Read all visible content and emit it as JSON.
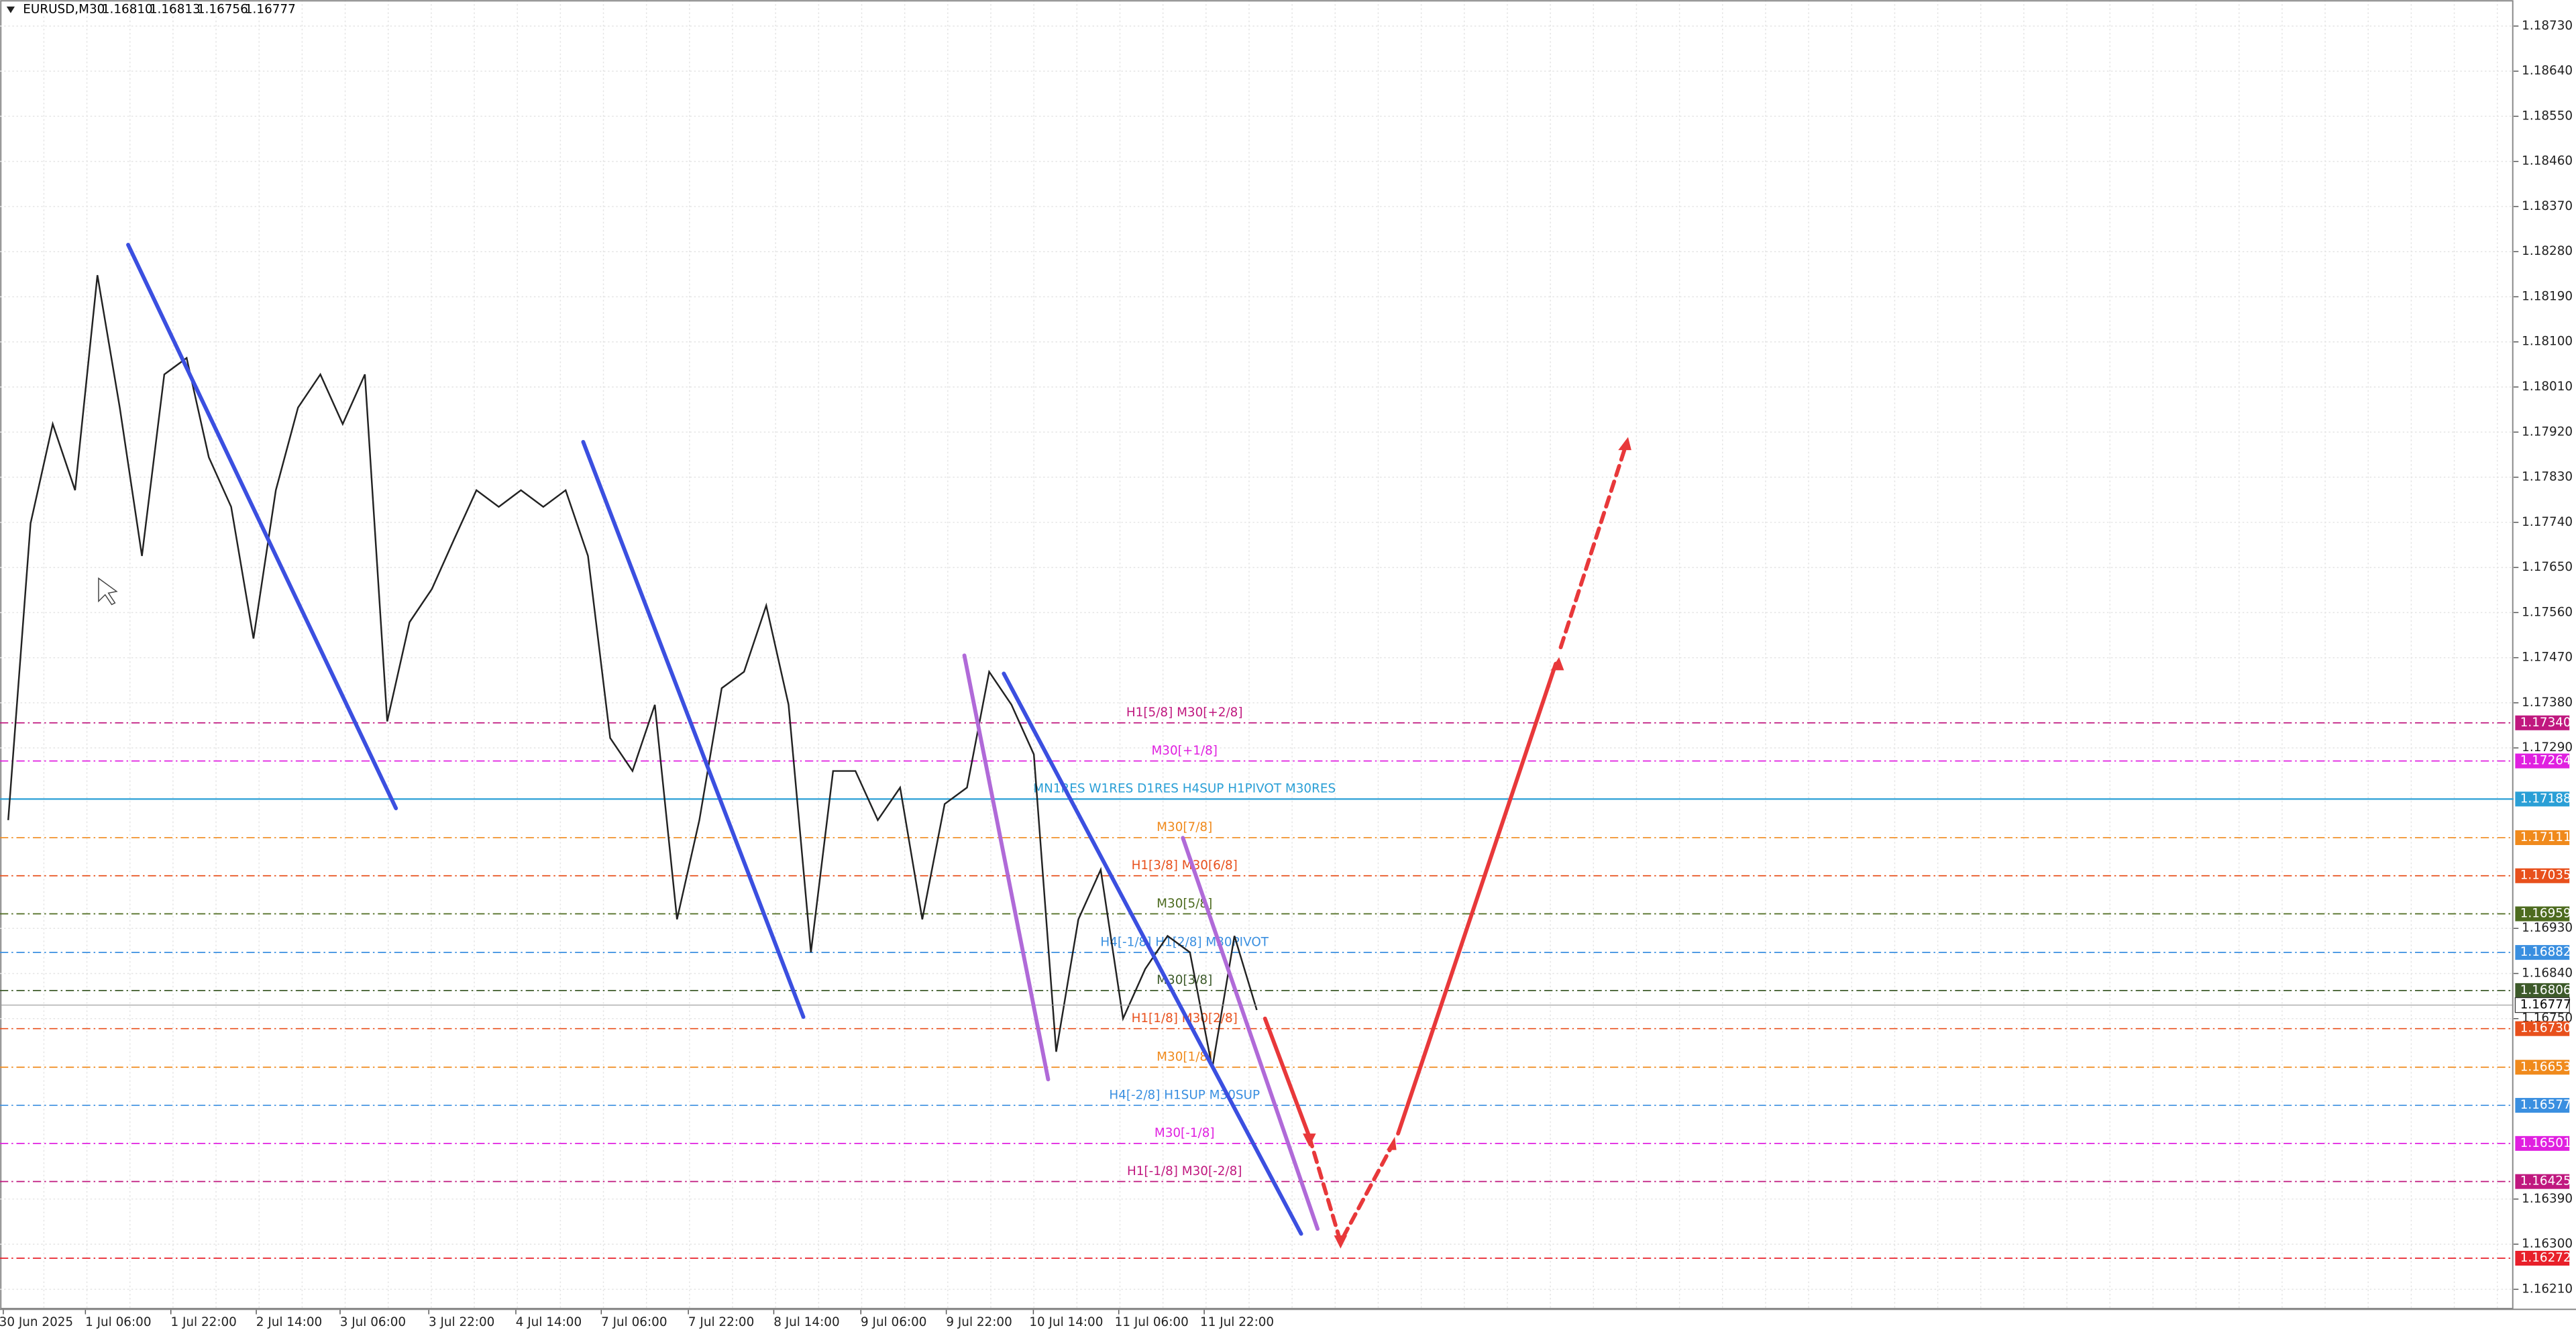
{
  "header": {
    "symbol": "EURUSD,M30",
    "quotes": [
      "1.16810",
      "1.16813",
      "1.16756",
      "1.16777"
    ]
  },
  "price_axis": {
    "ylim": [
      1.1617,
      1.18782
    ],
    "ticks": [
      {
        "value": 1.1873,
        "label": "1.18730"
      },
      {
        "value": 1.1864,
        "label": "1.18640"
      },
      {
        "value": 1.1855,
        "label": "1.18550"
      },
      {
        "value": 1.1846,
        "label": "1.18460"
      },
      {
        "value": 1.1837,
        "label": "1.18370"
      },
      {
        "value": 1.1828,
        "label": "1.18280"
      },
      {
        "value": 1.1819,
        "label": "1.18190"
      },
      {
        "value": 1.181,
        "label": "1.18100"
      },
      {
        "value": 1.1801,
        "label": "1.18010"
      },
      {
        "value": 1.1792,
        "label": "1.17920"
      },
      {
        "value": 1.1783,
        "label": "1.17830"
      },
      {
        "value": 1.1774,
        "label": "1.17740"
      },
      {
        "value": 1.1765,
        "label": "1.17650"
      },
      {
        "value": 1.1756,
        "label": "1.17560"
      },
      {
        "value": 1.1747,
        "label": "1.17470"
      },
      {
        "value": 1.1738,
        "label": "1.17380"
      },
      {
        "value": 1.1729,
        "label": "1.17290"
      },
      {
        "value": 1.1693,
        "label": "1.16930"
      },
      {
        "value": 1.1684,
        "label": "1.16840"
      },
      {
        "value": 1.1675,
        "label": "1.16750"
      },
      {
        "value": 1.1639,
        "label": "1.16390"
      },
      {
        "value": 1.163,
        "label": "1.16300"
      },
      {
        "value": 1.1621,
        "label": "1.16210"
      }
    ]
  },
  "time_axis": [
    "30 Jun 2025",
    "1 Jul 06:00",
    "1 Jul 22:00",
    "2 Jul 14:00",
    "3 Jul 06:00",
    "3 Jul 22:00",
    "4 Jul 14:00",
    "7 Jul 06:00",
    "7 Jul 22:00",
    "8 Jul 14:00",
    "9 Jul 06:00",
    "9 Jul 22:00",
    "10 Jul 14:00",
    "11 Jul 06:00",
    "11 Jul 22:00"
  ],
  "price_path": [
    1.17146,
    1.17738,
    1.17936,
    1.17804,
    1.18233,
    1.17969,
    1.17673,
    1.18035,
    1.18068,
    1.1787,
    1.17771,
    1.17508,
    1.17804,
    1.17969,
    1.18035,
    1.17936,
    1.18035,
    1.17343,
    1.17541,
    1.17607,
    1.17706,
    1.17804,
    1.17771,
    1.17804,
    1.17771,
    1.17804,
    1.17673,
    1.1731,
    1.17244,
    1.17376,
    1.16948,
    1.17146,
    1.17409,
    1.17442,
    1.17574,
    1.17376,
    1.16882,
    1.17244,
    1.17244,
    1.17146,
    1.17211,
    1.16948,
    1.17178,
    1.17211,
    1.17442,
    1.17376,
    1.17277,
    1.16684,
    1.16948,
    1.17047,
    1.1675,
    1.16849,
    1.16915,
    1.16882,
    1.16651,
    1.16915,
    1.16767
  ],
  "levels": [
    {
      "label": "H1[5/8] M30[+2/8]",
      "price": {
        "value": 1.1734,
        "label": "1.17340"
      },
      "color": "#c0187f"
    },
    {
      "label": "M30[+1/8]",
      "price": {
        "value": 1.17264,
        "label": "1.17264"
      },
      "color": "#e020e0"
    },
    {
      "label": "MN1RES W1RES D1RES H4SUP H1PIVOT M30RES",
      "price": {
        "value": 1.17188,
        "label": "1.17188"
      },
      "color": "#2a9fd6"
    },
    {
      "label": "M30[7/8]",
      "price": {
        "value": 1.17111,
        "label": "1.17111"
      },
      "color": "#f08a1c"
    },
    {
      "label": "H1[3/8] M30[6/8]",
      "price": {
        "value": 1.17035,
        "label": "1.17035"
      },
      "color": "#e8501c"
    },
    {
      "label": "M30[5/8]",
      "price": {
        "value": 1.16959,
        "label": "1.16959"
      },
      "color": "#4d6b1f"
    },
    {
      "label": "H4[-1/8] H1[2/8] M30PIVOT",
      "price": {
        "value": 1.16882,
        "label": "1.16882"
      },
      "color": "#3a8fe0"
    },
    {
      "label": "M30[3/8]",
      "price": {
        "value": 1.16806,
        "label": "1.16806"
      },
      "color": "#3d5a2a"
    },
    {
      "label": "H1[1/8] M30[2/8]",
      "price": {
        "value": 1.1673,
        "label": "1.16730"
      },
      "color": "#e8501c"
    },
    {
      "label": "M30[1/8]",
      "price": {
        "value": 1.16653,
        "label": "1.16653"
      },
      "color": "#f08a1c"
    },
    {
      "label": "H4[-2/8] H1SUP M30SUP",
      "price": {
        "value": 1.16577,
        "label": "1.16577"
      },
      "color": "#3a8fe0"
    },
    {
      "label": "M30[-1/8]",
      "price": {
        "value": 1.16501,
        "label": "1.16501"
      },
      "color": "#e020e0"
    },
    {
      "label": "H1[-1/8] M30[-2/8]",
      "price": {
        "value": 1.16425,
        "label": "1.16425"
      },
      "color": "#c0187f"
    },
    {
      "price": {
        "value": 1.16272,
        "label": "1.16272"
      },
      "color": "#e8202a"
    }
  ],
  "current_price": {
    "value": 1.16777,
    "label": "1.16777"
  }
}
